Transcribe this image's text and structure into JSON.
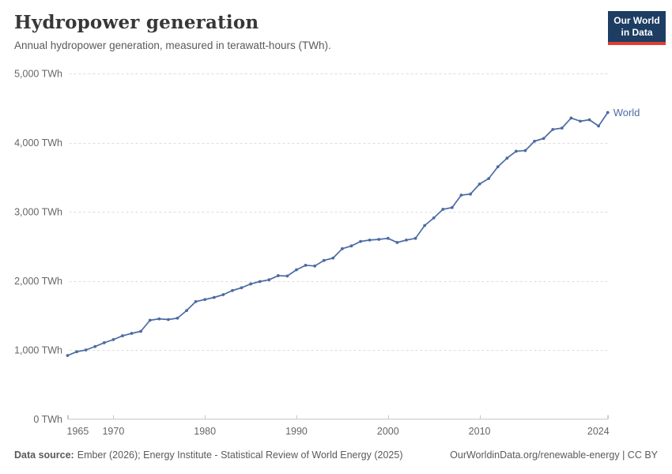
{
  "header": {
    "title": "Hydropower generation",
    "subtitle": "Annual hydropower generation, measured in terawatt-hours (TWh).",
    "logo": {
      "line1": "Our World",
      "line2": "in Data"
    }
  },
  "chart_data": {
    "type": "line",
    "title": "Hydropower generation",
    "xlabel": "",
    "ylabel": "TWh",
    "unit": "TWh",
    "xlim": [
      1965,
      2024
    ],
    "ylim": [
      0,
      5000
    ],
    "grid": "horizontal-dashed",
    "legend_position": "end-of-line-label",
    "x_ticks": [
      {
        "year": 1965,
        "label": "1965"
      },
      {
        "year": 1970,
        "label": "1970"
      },
      {
        "year": 1980,
        "label": "1980"
      },
      {
        "year": 1990,
        "label": "1990"
      },
      {
        "year": 2000,
        "label": "2000"
      },
      {
        "year": 2010,
        "label": "2010"
      },
      {
        "year": 2024,
        "label": "2024"
      }
    ],
    "y_ticks": [
      {
        "value": 0,
        "label": "0 TWh"
      },
      {
        "value": 1000,
        "label": "1,000 TWh"
      },
      {
        "value": 2000,
        "label": "2,000 TWh"
      },
      {
        "value": 3000,
        "label": "3,000 TWh"
      },
      {
        "value": 4000,
        "label": "4,000 TWh"
      },
      {
        "value": 5000,
        "label": "5,000 TWh"
      }
    ],
    "series": [
      {
        "name": "World",
        "color": "#4c6ba3",
        "x": [
          1965,
          1966,
          1967,
          1968,
          1969,
          1970,
          1971,
          1972,
          1973,
          1974,
          1975,
          1976,
          1977,
          1978,
          1979,
          1980,
          1981,
          1982,
          1983,
          1984,
          1985,
          1986,
          1987,
          1988,
          1989,
          1990,
          1991,
          1992,
          1993,
          1994,
          1995,
          1996,
          1997,
          1998,
          1999,
          2000,
          2001,
          2002,
          2003,
          2004,
          2005,
          2006,
          2007,
          2008,
          2009,
          2010,
          2011,
          2012,
          2013,
          2014,
          2015,
          2016,
          2017,
          2018,
          2019,
          2020,
          2021,
          2022,
          2023,
          2024
        ],
        "values": [
          920,
          975,
          1000,
          1050,
          1105,
          1150,
          1205,
          1240,
          1270,
          1430,
          1450,
          1440,
          1460,
          1570,
          1700,
          1730,
          1760,
          1800,
          1860,
          1900,
          1955,
          1990,
          2015,
          2075,
          2070,
          2160,
          2225,
          2215,
          2295,
          2330,
          2465,
          2505,
          2570,
          2590,
          2600,
          2615,
          2555,
          2590,
          2615,
          2800,
          2910,
          3035,
          3060,
          3240,
          3255,
          3400,
          3480,
          3650,
          3775,
          3875,
          3885,
          4020,
          4060,
          4190,
          4210,
          4355,
          4310,
          4330,
          4240,
          4435
        ]
      }
    ]
  },
  "colors": {
    "line": "#4c6ba3",
    "grid": "#dddddd",
    "axis": "#c8c8c8",
    "tick_text": "#666666",
    "logo_bg": "#1d3d63",
    "logo_accent": "#dc3e32"
  },
  "footer": {
    "source_label": "Data source:",
    "source_value": "Ember (2026); Energy Institute - Statistical Review of World Energy (2025)",
    "credit": "OurWorldinData.org/renewable-energy | CC BY"
  }
}
